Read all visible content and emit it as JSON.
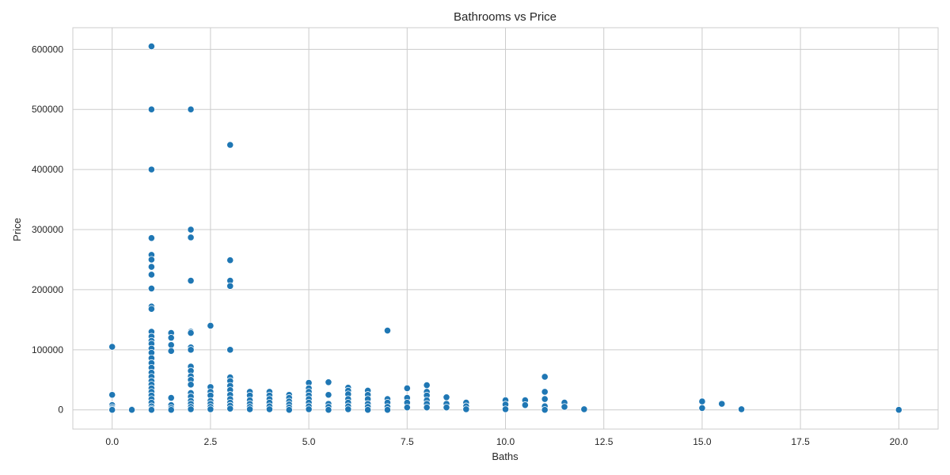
{
  "chart_data": {
    "type": "scatter",
    "title": "Bathrooms vs Price",
    "xlabel": "Baths",
    "ylabel": "Price",
    "xlim": [
      -1.0,
      21.0
    ],
    "ylim": [
      -32000,
      636000
    ],
    "xticks": [
      0.0,
      2.5,
      5.0,
      7.5,
      10.0,
      12.5,
      15.0,
      17.5,
      20.0
    ],
    "xtick_labels": [
      "0.0",
      "2.5",
      "5.0",
      "7.5",
      "10.0",
      "12.5",
      "15.0",
      "17.5",
      "20.0"
    ],
    "yticks": [
      0,
      100000,
      200000,
      300000,
      400000,
      500000,
      600000
    ],
    "ytick_labels": [
      "0",
      "100000",
      "200000",
      "300000",
      "400000",
      "500000",
      "600000"
    ],
    "grid": true,
    "marker_color": "#1f77b4",
    "marker_edge_color": "#ffffff",
    "points": [
      {
        "x": 0,
        "y": 105000
      },
      {
        "x": 0,
        "y": 25000
      },
      {
        "x": 0,
        "y": 8000
      },
      {
        "x": 0,
        "y": 4000
      },
      {
        "x": 0,
        "y": 1500
      },
      {
        "x": 0,
        "y": 0
      },
      {
        "x": 0.5,
        "y": 1000
      },
      {
        "x": 0.5,
        "y": 0
      },
      {
        "x": 1,
        "y": 605000
      },
      {
        "x": 1,
        "y": 500000
      },
      {
        "x": 1,
        "y": 400000
      },
      {
        "x": 1,
        "y": 286000
      },
      {
        "x": 1,
        "y": 258000
      },
      {
        "x": 1,
        "y": 250000
      },
      {
        "x": 1,
        "y": 238000
      },
      {
        "x": 1,
        "y": 225000
      },
      {
        "x": 1,
        "y": 202000
      },
      {
        "x": 1,
        "y": 172000
      },
      {
        "x": 1,
        "y": 168000
      },
      {
        "x": 1,
        "y": 130000
      },
      {
        "x": 1,
        "y": 122000
      },
      {
        "x": 1,
        "y": 115000
      },
      {
        "x": 1,
        "y": 110000
      },
      {
        "x": 1,
        "y": 102000
      },
      {
        "x": 1,
        "y": 95000
      },
      {
        "x": 1,
        "y": 86000
      },
      {
        "x": 1,
        "y": 78000
      },
      {
        "x": 1,
        "y": 70000
      },
      {
        "x": 1,
        "y": 62000
      },
      {
        "x": 1,
        "y": 55000
      },
      {
        "x": 1,
        "y": 48000
      },
      {
        "x": 1,
        "y": 42000
      },
      {
        "x": 1,
        "y": 36000
      },
      {
        "x": 1,
        "y": 30000
      },
      {
        "x": 1,
        "y": 24000
      },
      {
        "x": 1,
        "y": 18000
      },
      {
        "x": 1,
        "y": 12000
      },
      {
        "x": 1,
        "y": 6000
      },
      {
        "x": 1,
        "y": 2000
      },
      {
        "x": 1,
        "y": 0
      },
      {
        "x": 1.5,
        "y": 128000
      },
      {
        "x": 1.5,
        "y": 120000
      },
      {
        "x": 1.5,
        "y": 108000
      },
      {
        "x": 1.5,
        "y": 98000
      },
      {
        "x": 1.5,
        "y": 20000
      },
      {
        "x": 1.5,
        "y": 8000
      },
      {
        "x": 1.5,
        "y": 3000
      },
      {
        "x": 1.5,
        "y": 0
      },
      {
        "x": 2,
        "y": 500000
      },
      {
        "x": 2,
        "y": 300000
      },
      {
        "x": 2,
        "y": 287000
      },
      {
        "x": 2,
        "y": 215000
      },
      {
        "x": 2,
        "y": 130000
      },
      {
        "x": 2,
        "y": 128000
      },
      {
        "x": 2,
        "y": 104000
      },
      {
        "x": 2,
        "y": 100000
      },
      {
        "x": 2,
        "y": 72000
      },
      {
        "x": 2,
        "y": 65000
      },
      {
        "x": 2,
        "y": 56000
      },
      {
        "x": 2,
        "y": 50000
      },
      {
        "x": 2,
        "y": 42000
      },
      {
        "x": 2,
        "y": 28000
      },
      {
        "x": 2,
        "y": 22000
      },
      {
        "x": 2,
        "y": 15000
      },
      {
        "x": 2,
        "y": 10000
      },
      {
        "x": 2,
        "y": 5000
      },
      {
        "x": 2,
        "y": 1000
      },
      {
        "x": 2.5,
        "y": 140000
      },
      {
        "x": 2.5,
        "y": 38000
      },
      {
        "x": 2.5,
        "y": 30000
      },
      {
        "x": 2.5,
        "y": 24000
      },
      {
        "x": 2.5,
        "y": 15000
      },
      {
        "x": 2.5,
        "y": 10000
      },
      {
        "x": 2.5,
        "y": 5000
      },
      {
        "x": 2.5,
        "y": 1000
      },
      {
        "x": 3,
        "y": 441000
      },
      {
        "x": 3,
        "y": 249000
      },
      {
        "x": 3,
        "y": 215000
      },
      {
        "x": 3,
        "y": 206000
      },
      {
        "x": 3,
        "y": 100000
      },
      {
        "x": 3,
        "y": 54000
      },
      {
        "x": 3,
        "y": 48000
      },
      {
        "x": 3,
        "y": 40000
      },
      {
        "x": 3,
        "y": 33000
      },
      {
        "x": 3,
        "y": 25000
      },
      {
        "x": 3,
        "y": 18000
      },
      {
        "x": 3,
        "y": 12000
      },
      {
        "x": 3,
        "y": 7000
      },
      {
        "x": 3,
        "y": 2000
      },
      {
        "x": 3.5,
        "y": 30000
      },
      {
        "x": 3.5,
        "y": 24000
      },
      {
        "x": 3.5,
        "y": 16000
      },
      {
        "x": 3.5,
        "y": 10000
      },
      {
        "x": 3.5,
        "y": 5000
      },
      {
        "x": 3.5,
        "y": 1000
      },
      {
        "x": 4,
        "y": 30000
      },
      {
        "x": 4,
        "y": 24000
      },
      {
        "x": 4,
        "y": 18000
      },
      {
        "x": 4,
        "y": 12000
      },
      {
        "x": 4,
        "y": 6000
      },
      {
        "x": 4,
        "y": 1000
      },
      {
        "x": 4.5,
        "y": 25000
      },
      {
        "x": 4.5,
        "y": 20000
      },
      {
        "x": 4.5,
        "y": 14000
      },
      {
        "x": 4.5,
        "y": 9000
      },
      {
        "x": 4.5,
        "y": 4000
      },
      {
        "x": 4.5,
        "y": 0
      },
      {
        "x": 5,
        "y": 45000
      },
      {
        "x": 5,
        "y": 36000
      },
      {
        "x": 5,
        "y": 30000
      },
      {
        "x": 5,
        "y": 24000
      },
      {
        "x": 5,
        "y": 18000
      },
      {
        "x": 5,
        "y": 12000
      },
      {
        "x": 5,
        "y": 6000
      },
      {
        "x": 5,
        "y": 1000
      },
      {
        "x": 5.5,
        "y": 46000
      },
      {
        "x": 5.5,
        "y": 25000
      },
      {
        "x": 5.5,
        "y": 10000
      },
      {
        "x": 5.5,
        "y": 5000
      },
      {
        "x": 5.5,
        "y": 0
      },
      {
        "x": 6,
        "y": 37000
      },
      {
        "x": 6,
        "y": 32000
      },
      {
        "x": 6,
        "y": 26000
      },
      {
        "x": 6,
        "y": 18000
      },
      {
        "x": 6,
        "y": 12000
      },
      {
        "x": 6,
        "y": 6000
      },
      {
        "x": 6,
        "y": 1000
      },
      {
        "x": 6.5,
        "y": 32000
      },
      {
        "x": 6.5,
        "y": 25000
      },
      {
        "x": 6.5,
        "y": 18000
      },
      {
        "x": 6.5,
        "y": 10000
      },
      {
        "x": 6.5,
        "y": 5000
      },
      {
        "x": 6.5,
        "y": 0
      },
      {
        "x": 7,
        "y": 132000
      },
      {
        "x": 7,
        "y": 18000
      },
      {
        "x": 7,
        "y": 12000
      },
      {
        "x": 7,
        "y": 5000
      },
      {
        "x": 7,
        "y": 0
      },
      {
        "x": 7.5,
        "y": 36000
      },
      {
        "x": 7.5,
        "y": 20000
      },
      {
        "x": 7.5,
        "y": 12000
      },
      {
        "x": 7.5,
        "y": 4000
      },
      {
        "x": 8,
        "y": 41000
      },
      {
        "x": 8,
        "y": 30000
      },
      {
        "x": 8,
        "y": 24000
      },
      {
        "x": 8,
        "y": 16000
      },
      {
        "x": 8,
        "y": 10000
      },
      {
        "x": 8,
        "y": 4000
      },
      {
        "x": 8.5,
        "y": 21000
      },
      {
        "x": 8.5,
        "y": 10000
      },
      {
        "x": 8.5,
        "y": 4000
      },
      {
        "x": 9,
        "y": 12000
      },
      {
        "x": 9,
        "y": 6000
      },
      {
        "x": 9,
        "y": 1000
      },
      {
        "x": 10,
        "y": 16000
      },
      {
        "x": 10,
        "y": 9000
      },
      {
        "x": 10,
        "y": 1000
      },
      {
        "x": 10.5,
        "y": 16000
      },
      {
        "x": 10.5,
        "y": 8000
      },
      {
        "x": 11,
        "y": 55000
      },
      {
        "x": 11,
        "y": 30000
      },
      {
        "x": 11,
        "y": 18000
      },
      {
        "x": 11,
        "y": 6000
      },
      {
        "x": 11,
        "y": 0
      },
      {
        "x": 11.5,
        "y": 12000
      },
      {
        "x": 11.5,
        "y": 5000
      },
      {
        "x": 12,
        "y": 1000
      },
      {
        "x": 15,
        "y": 14000
      },
      {
        "x": 15,
        "y": 3000
      },
      {
        "x": 15.5,
        "y": 10000
      },
      {
        "x": 16,
        "y": 1000
      },
      {
        "x": 20,
        "y": 0
      }
    ]
  }
}
